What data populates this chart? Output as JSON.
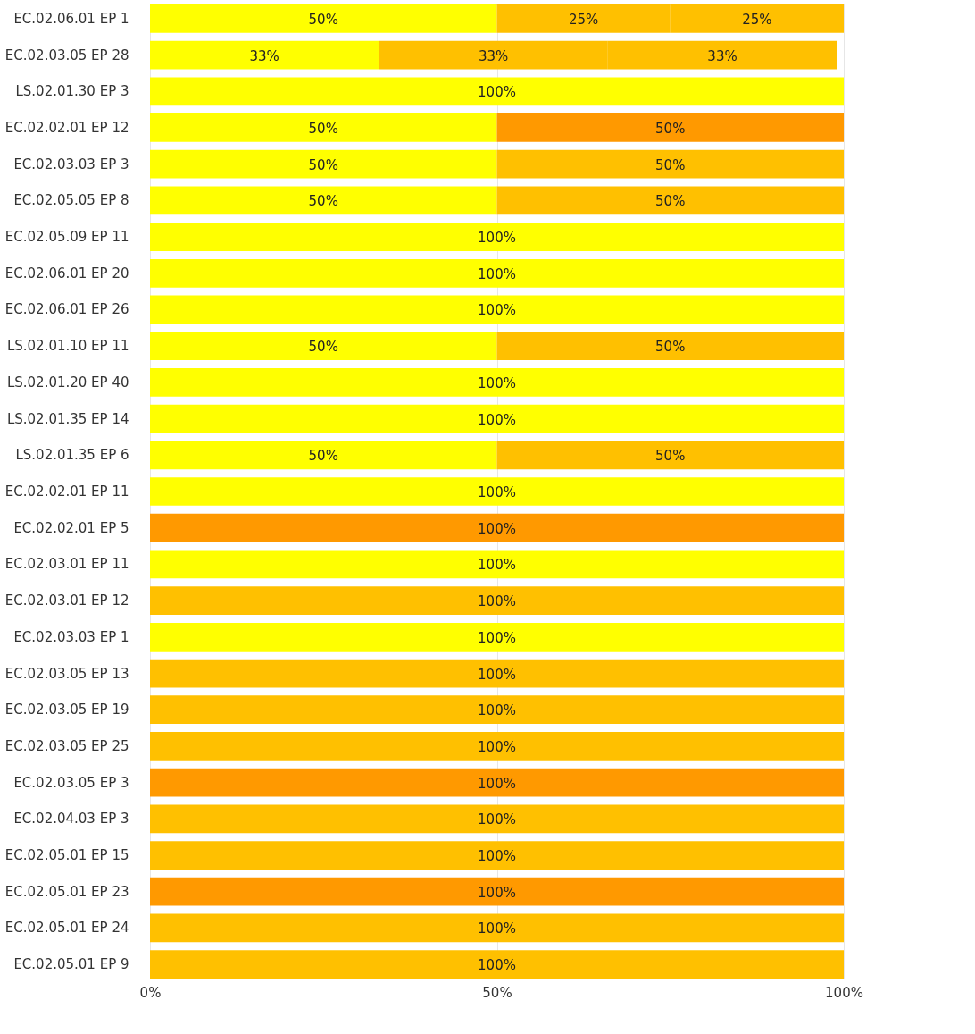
{
  "chart_data": {
    "type": "bar",
    "orientation": "horizontal",
    "stacked": true,
    "categories": [
      "EC.02.06.01 EP 1",
      "EC.02.03.05 EP 28",
      "LS.02.01.30 EP 3",
      "EC.02.02.01 EP 12",
      "EC.02.03.03 EP 3",
      "EC.02.05.05 EP 8",
      "EC.02.05.09 EP 11",
      "EC.02.06.01 EP 20",
      "EC.02.06.01 EP 26",
      "LS.02.01.10 EP 11",
      "LS.02.01.20 EP 40",
      "LS.02.01.35 EP 14",
      "LS.02.01.35 EP 6",
      "EC.02.02.01 EP 11",
      "EC.02.02.01 EP 5",
      "EC.02.03.01 EP 11",
      "EC.02.03.01 EP 12",
      "EC.02.03.03 EP 1",
      "EC.02.03.05 EP 13",
      "EC.02.03.05 EP 19",
      "EC.02.03.05 EP 25",
      "EC.02.03.05 EP 3",
      "EC.02.04.03 EP 3",
      "EC.02.05.01 EP 15",
      "EC.02.05.01 EP 23",
      "EC.02.05.01 EP 24",
      "EC.02.05.01 EP 9"
    ],
    "series": [
      {
        "color": "#ffff00",
        "values": [
          50,
          33,
          100,
          50,
          50,
          50,
          100,
          100,
          100,
          50,
          100,
          100,
          50,
          100,
          null,
          100,
          null,
          100,
          null,
          null,
          null,
          null,
          null,
          null,
          null,
          null,
          null
        ],
        "value_labels": [
          "50%",
          "33%",
          "100%",
          "50%",
          "50%",
          "50%",
          "100%",
          "100%",
          "100%",
          "50%",
          "100%",
          "100%",
          "50%",
          "100%",
          null,
          "100%",
          null,
          "100%",
          null,
          null,
          null,
          null,
          null,
          null,
          null,
          null,
          null
        ]
      },
      {
        "color": "#ffc000",
        "values": [
          25,
          33,
          null,
          null,
          50,
          50,
          null,
          null,
          null,
          50,
          null,
          null,
          50,
          null,
          null,
          null,
          100,
          null,
          100,
          100,
          100,
          null,
          100,
          100,
          null,
          100,
          100
        ],
        "value_labels": [
          "25%",
          "33%",
          null,
          null,
          "50%",
          "50%",
          null,
          null,
          null,
          "50%",
          null,
          null,
          "50%",
          null,
          null,
          null,
          "100%",
          null,
          "100%",
          "100%",
          "100%",
          null,
          "100%",
          "100%",
          null,
          "100%",
          "100%"
        ]
      },
      {
        "color": "#ffc000",
        "values": [
          25,
          33,
          null,
          null,
          null,
          null,
          null,
          null,
          null,
          null,
          null,
          null,
          null,
          null,
          null,
          null,
          null,
          null,
          null,
          null,
          null,
          null,
          null,
          null,
          null,
          null,
          null
        ],
        "value_labels": [
          "25%",
          "33%",
          null,
          null,
          null,
          null,
          null,
          null,
          null,
          null,
          null,
          null,
          null,
          null,
          null,
          null,
          null,
          null,
          null,
          null,
          null,
          null,
          null,
          null,
          null,
          null,
          null
        ]
      },
      {
        "color": "#ff9900",
        "values": [
          null,
          null,
          null,
          50,
          null,
          null,
          null,
          null,
          null,
          null,
          null,
          null,
          null,
          null,
          100,
          null,
          null,
          null,
          null,
          null,
          null,
          100,
          null,
          null,
          100,
          null,
          null
        ],
        "value_labels": [
          null,
          null,
          null,
          "50%",
          null,
          null,
          null,
          null,
          null,
          null,
          null,
          null,
          null,
          null,
          "100%",
          null,
          null,
          null,
          null,
          null,
          null,
          "100%",
          null,
          null,
          "100%",
          null,
          null
        ]
      }
    ],
    "xlim": [
      0,
      100
    ],
    "xticks": [
      {
        "value": 0,
        "label": "0%"
      },
      {
        "value": 50,
        "label": "50%"
      },
      {
        "value": 100,
        "label": "100%"
      }
    ],
    "grid": "x",
    "legend": false
  }
}
